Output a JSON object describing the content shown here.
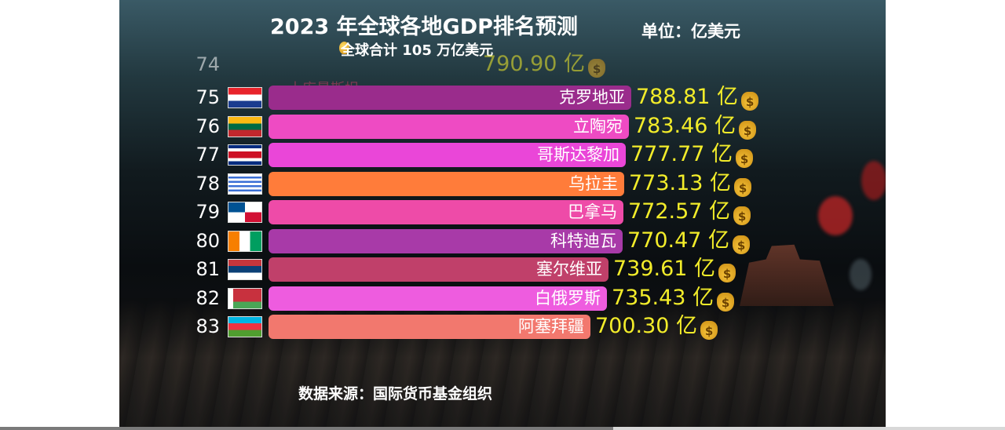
{
  "header": {
    "title": "2023 年全球各地GDP排名预测",
    "unit": "单位：亿美元",
    "subtitle": "全球合计 105 万亿美元"
  },
  "footer": {
    "source": "数据来源：国际货币基金组织"
  },
  "player": {
    "progress_fraction": 0.61
  },
  "chart_data": {
    "type": "bar",
    "orientation": "horizontal",
    "unit_suffix": "亿",
    "value_range": [
      0,
      790.9
    ],
    "ghost_row": {
      "rank": "74",
      "name": "土库曼斯坦",
      "value": 790.9,
      "value_label": "790.90 亿"
    },
    "rows": [
      {
        "rank": "75",
        "name": "克罗地亚",
        "value": 788.81,
        "value_label": "788.81 亿",
        "color": "#9a2c8c",
        "flag": "croatia"
      },
      {
        "rank": "76",
        "name": "立陶宛",
        "value": 783.46,
        "value_label": "783.46 亿",
        "color": "#ee4bc3",
        "flag": "lithuania"
      },
      {
        "rank": "77",
        "name": "哥斯达黎加",
        "value": 777.77,
        "value_label": "777.77 亿",
        "color": "#ea46d8",
        "flag": "costa-rica"
      },
      {
        "rank": "78",
        "name": "乌拉圭",
        "value": 773.13,
        "value_label": "773.13 亿",
        "color": "#ff7c3a",
        "flag": "uruguay"
      },
      {
        "rank": "79",
        "name": "巴拿马",
        "value": 772.57,
        "value_label": "772.57 亿",
        "color": "#ee4ba8",
        "flag": "panama"
      },
      {
        "rank": "80",
        "name": "科特迪瓦",
        "value": 770.47,
        "value_label": "770.47 亿",
        "color": "#a83aa8",
        "flag": "cote-divoire"
      },
      {
        "rank": "81",
        "name": "塞尔维亚",
        "value": 739.61,
        "value_label": "739.61 亿",
        "color": "#c0406a",
        "flag": "serbia"
      },
      {
        "rank": "82",
        "name": "白俄罗斯",
        "value": 735.43,
        "value_label": "735.43 亿",
        "color": "#ee5cdf",
        "flag": "belarus"
      },
      {
        "rank": "83",
        "name": "阿塞拜疆",
        "value": 700.3,
        "value_label": "700.30 亿",
        "color": "#f2786e",
        "flag": "azerbaijan"
      }
    ]
  }
}
